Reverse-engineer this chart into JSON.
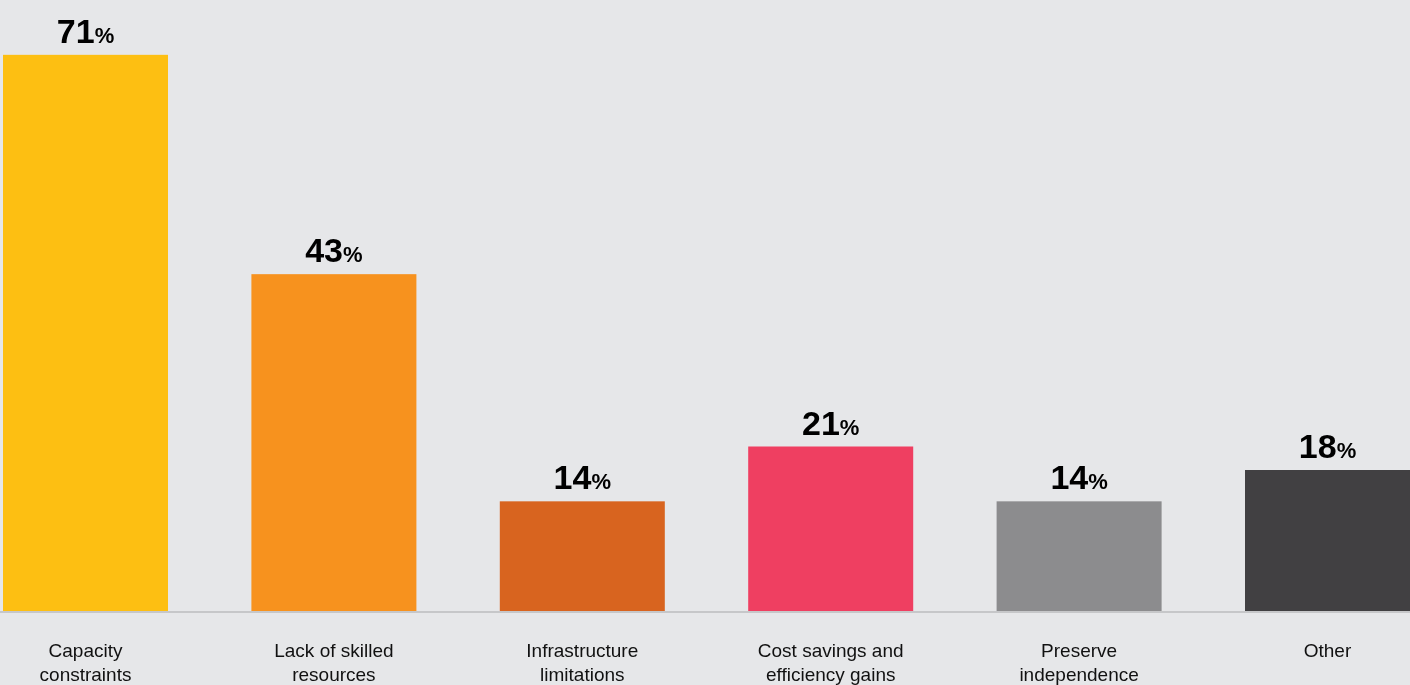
{
  "chart_data": {
    "type": "bar",
    "categories": [
      "Capacity constraints",
      "Lack of skilled resources",
      "Infrastructure limitations",
      "Cost savings and efficiency gains",
      "Preserve independence",
      "Other"
    ],
    "values": [
      71,
      43,
      14,
      21,
      14,
      18
    ],
    "colors": [
      "#fdbf12",
      "#f7921e",
      "#d8641f",
      "#ef3f61",
      "#8c8c8e",
      "#414042"
    ],
    "value_labels": [
      "71%",
      "43%",
      "14%",
      "21%",
      "14%",
      "18%"
    ],
    "ylim": [
      0,
      78
    ]
  }
}
